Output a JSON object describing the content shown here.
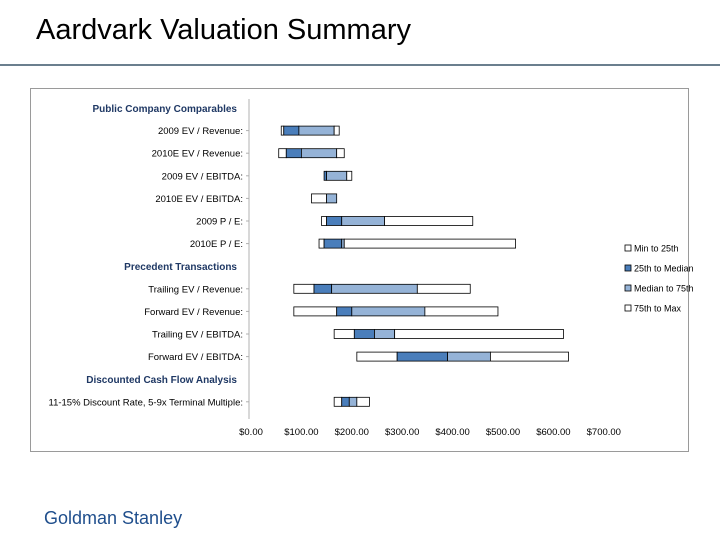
{
  "slide": {
    "title": "Aardvark Valuation Summary",
    "footer": "Goldman Stanley"
  },
  "colors": {
    "min_to_25th": "#ffffff",
    "25th_to_median": "#4a7ebb",
    "median_to_75th": "#95b3d7",
    "75th_to_max": "#ffffff",
    "outline": "#000000",
    "rule": "#6b7f8e",
    "footer_text": "#1f4e8c"
  },
  "chart_data": {
    "type": "football-field",
    "title": "",
    "xlabel": "",
    "ylabel": "",
    "xlim": [
      0,
      700
    ],
    "x_ticks": [
      0,
      100,
      200,
      300,
      400,
      500,
      600,
      700
    ],
    "x_tick_labels": [
      "$0.00",
      "$100.00",
      "$200.00",
      "$300.00",
      "$400.00",
      "$500.00",
      "$600.00",
      "$700.00"
    ],
    "legend_position": "right",
    "legend": [
      "Min to 25th",
      "25th to Median",
      "Median to 75th",
      "75th to Max"
    ],
    "rows": [
      {
        "kind": "header",
        "label": "Public Company Comparables"
      },
      {
        "kind": "bar",
        "label": "2009 EV / Revenue:",
        "min": 60,
        "p25": 65,
        "median": 95,
        "p75": 165,
        "max": 175
      },
      {
        "kind": "bar",
        "label": "2010E EV / Revenue:",
        "min": 55,
        "p25": 70,
        "median": 100,
        "p75": 170,
        "max": 185
      },
      {
        "kind": "bar",
        "label": "2009 EV / EBITDA:",
        "min": 145,
        "p25": 145,
        "median": 150,
        "p75": 190,
        "max": 200
      },
      {
        "kind": "bar",
        "label": "2010E EV / EBITDA:",
        "min": 120,
        "p25": 150,
        "median": 150,
        "p75": 170,
        "max": 170
      },
      {
        "kind": "bar",
        "label": "2009 P / E:",
        "min": 140,
        "p25": 150,
        "median": 180,
        "p75": 265,
        "max": 440
      },
      {
        "kind": "bar",
        "label": "2010E P / E:",
        "min": 135,
        "p25": 145,
        "median": 180,
        "p75": 185,
        "max": 525
      },
      {
        "kind": "header",
        "label": "Precedent Transactions"
      },
      {
        "kind": "bar",
        "label": "Trailing EV / Revenue:",
        "min": 85,
        "p25": 125,
        "median": 160,
        "p75": 330,
        "max": 435
      },
      {
        "kind": "bar",
        "label": "Forward EV / Revenue:",
        "min": 85,
        "p25": 170,
        "median": 200,
        "p75": 345,
        "max": 490
      },
      {
        "kind": "bar",
        "label": "Trailing EV / EBITDA:",
        "min": 165,
        "p25": 205,
        "median": 245,
        "p75": 285,
        "max": 620
      },
      {
        "kind": "bar",
        "label": "Forward EV / EBITDA:",
        "min": 210,
        "p25": 290,
        "median": 390,
        "p75": 475,
        "max": 630
      },
      {
        "kind": "header",
        "label": "Discounted Cash Flow Analysis"
      },
      {
        "kind": "bar",
        "label": "11-15% Discount Rate, 5-9x Terminal Multiple:",
        "min": 165,
        "p25": 180,
        "median": 195,
        "p75": 210,
        "max": 235
      }
    ]
  }
}
